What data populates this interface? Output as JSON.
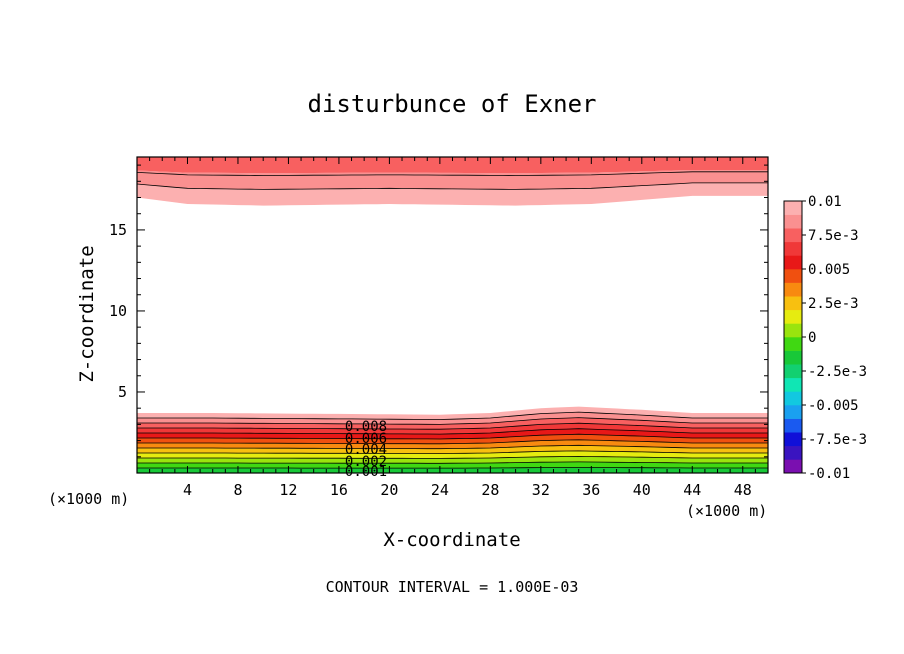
{
  "chart_data": {
    "type": "heatmap",
    "subtype": "filled contour",
    "title": "disturbunce of Exner",
    "xlabel": "X-coordinate",
    "ylabel": "Z-coordinate",
    "x_unit_left": "(×1000 m)",
    "x_unit_right": "(×1000 m)",
    "x_ticks": [
      4,
      8,
      12,
      16,
      20,
      24,
      28,
      32,
      36,
      40,
      44,
      48
    ],
    "y_ticks": [
      5,
      10,
      15
    ],
    "xlim": [
      0,
      50
    ],
    "ylim": [
      0,
      19.5
    ],
    "footer": "CONTOUR INTERVAL = 1.000E-03",
    "contour_interval": 0.001,
    "colorbar": {
      "labels": [
        "0.01",
        "7.5e-3",
        "0.005",
        "2.5e-3",
        "0",
        "-2.5e-3",
        "-0.005",
        "-7.5e-3",
        "-0.01"
      ],
      "range": [
        -0.01,
        0.01
      ],
      "colors": [
        "#7a0fb0",
        "#3a14c0",
        "#1010d8",
        "#1a5af0",
        "#1aa0f0",
        "#12c8e0",
        "#10e6b4",
        "#12d070",
        "#18c838",
        "#40d812",
        "#9ae40e",
        "#e6ec10",
        "#f8c010",
        "#f88a10",
        "#f05010",
        "#e81818",
        "#f03838",
        "#f86060",
        "#fa9090",
        "#fcb0b0"
      ]
    },
    "contour_labels": [
      "0.008",
      "0.006",
      "0.004",
      "0.002",
      "0.001"
    ],
    "bottom_band": {
      "top_surface_z": [
        3.7,
        3.7,
        3.6,
        3.7,
        4.0,
        4.1,
        3.9,
        3.7,
        3.7
      ],
      "top_surface_x": [
        0,
        6,
        24,
        28,
        32,
        35,
        40,
        44,
        50
      ]
    },
    "top_band": {
      "bottom_surface_z": [
        17.0,
        16.6,
        16.5,
        16.6,
        16.5,
        16.6,
        17.1,
        17.1
      ],
      "bottom_surface_x": [
        0,
        4,
        10,
        20,
        30,
        36,
        44,
        50
      ]
    }
  }
}
